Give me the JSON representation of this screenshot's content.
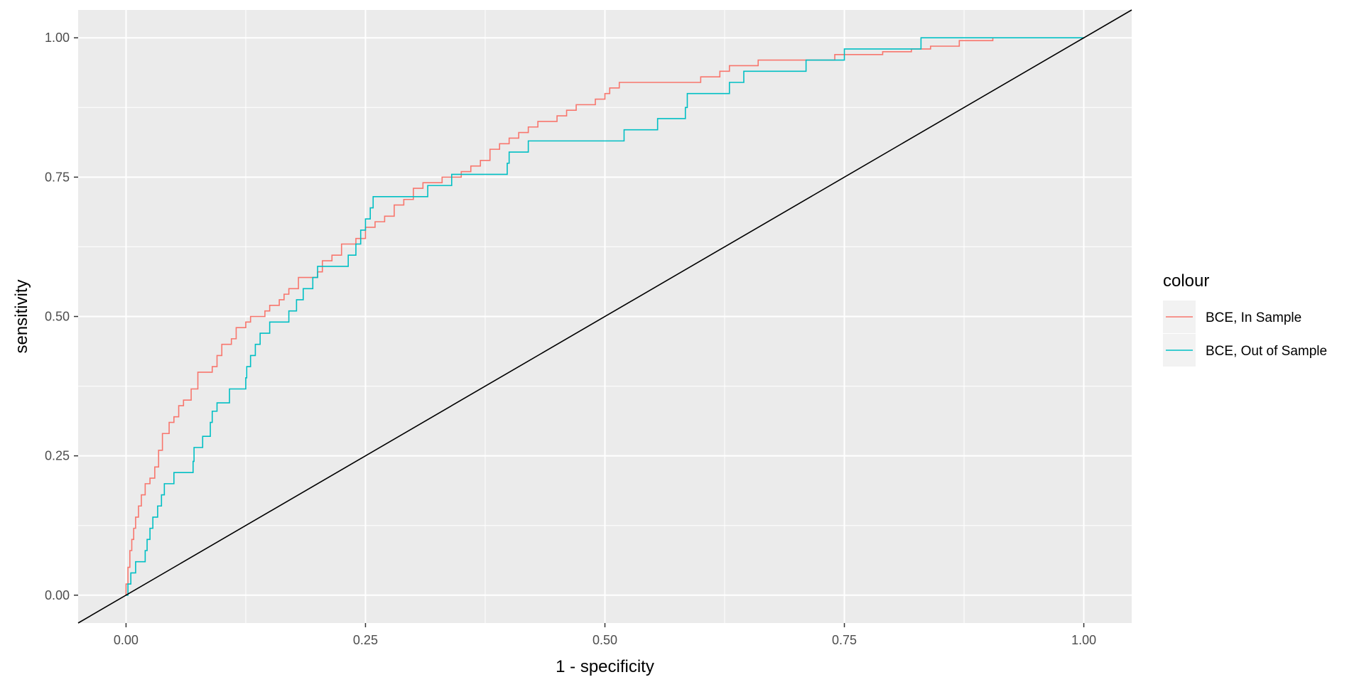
{
  "chart_data": {
    "type": "line",
    "title": "",
    "xlabel": "1 - specificity",
    "ylabel": "sensitivity",
    "xlim": [
      -0.05,
      1.05
    ],
    "ylim": [
      -0.05,
      1.05
    ],
    "x_ticks": [
      0,
      0.25,
      0.5,
      0.75,
      1
    ],
    "x_tick_labels": [
      "0.00",
      "0.25",
      "0.50",
      "0.75",
      "1.00"
    ],
    "y_ticks": [
      0,
      0.25,
      0.5,
      0.75,
      1
    ],
    "y_tick_labels": [
      "0.00",
      "0.25",
      "0.50",
      "0.75",
      "1.00"
    ],
    "grid": true,
    "panel_background": "#ebebeb",
    "legend": {
      "title": "colour",
      "position": "right"
    },
    "reference_line": {
      "slope": 1,
      "intercept": 0,
      "color": "#000000"
    },
    "series": [
      {
        "name": "BCE, In Sample",
        "color": "#f8766d",
        "step": true,
        "points": [
          [
            0,
            0
          ],
          [
            0,
            0.02
          ],
          [
            0.002,
            0.05
          ],
          [
            0.004,
            0.08
          ],
          [
            0.006,
            0.1
          ],
          [
            0.008,
            0.12
          ],
          [
            0.01,
            0.14
          ],
          [
            0.013,
            0.16
          ],
          [
            0.016,
            0.18
          ],
          [
            0.02,
            0.2
          ],
          [
            0.025,
            0.21
          ],
          [
            0.03,
            0.23
          ],
          [
            0.034,
            0.26
          ],
          [
            0.038,
            0.29
          ],
          [
            0.045,
            0.31
          ],
          [
            0.05,
            0.32
          ],
          [
            0.055,
            0.34
          ],
          [
            0.06,
            0.35
          ],
          [
            0.068,
            0.37
          ],
          [
            0.075,
            0.4
          ],
          [
            0.09,
            0.41
          ],
          [
            0.095,
            0.43
          ],
          [
            0.1,
            0.45
          ],
          [
            0.11,
            0.46
          ],
          [
            0.115,
            0.48
          ],
          [
            0.125,
            0.49
          ],
          [
            0.13,
            0.5
          ],
          [
            0.145,
            0.51
          ],
          [
            0.15,
            0.52
          ],
          [
            0.16,
            0.53
          ],
          [
            0.165,
            0.54
          ],
          [
            0.17,
            0.55
          ],
          [
            0.18,
            0.57
          ],
          [
            0.2,
            0.58
          ],
          [
            0.205,
            0.6
          ],
          [
            0.215,
            0.61
          ],
          [
            0.225,
            0.63
          ],
          [
            0.24,
            0.64
          ],
          [
            0.25,
            0.66
          ],
          [
            0.26,
            0.67
          ],
          [
            0.27,
            0.68
          ],
          [
            0.28,
            0.7
          ],
          [
            0.29,
            0.71
          ],
          [
            0.3,
            0.73
          ],
          [
            0.31,
            0.74
          ],
          [
            0.33,
            0.75
          ],
          [
            0.35,
            0.76
          ],
          [
            0.36,
            0.77
          ],
          [
            0.37,
            0.78
          ],
          [
            0.38,
            0.8
          ],
          [
            0.39,
            0.81
          ],
          [
            0.4,
            0.82
          ],
          [
            0.41,
            0.83
          ],
          [
            0.42,
            0.84
          ],
          [
            0.43,
            0.85
          ],
          [
            0.45,
            0.86
          ],
          [
            0.46,
            0.87
          ],
          [
            0.47,
            0.88
          ],
          [
            0.49,
            0.89
          ],
          [
            0.5,
            0.9
          ],
          [
            0.505,
            0.91
          ],
          [
            0.515,
            0.92
          ],
          [
            0.6,
            0.93
          ],
          [
            0.62,
            0.94
          ],
          [
            0.63,
            0.95
          ],
          [
            0.66,
            0.96
          ],
          [
            0.74,
            0.97
          ],
          [
            0.79,
            0.975
          ],
          [
            0.82,
            0.98
          ],
          [
            0.84,
            0.985
          ],
          [
            0.87,
            0.99
          ],
          [
            0.87,
            0.995
          ],
          [
            0.9,
            0.995
          ],
          [
            0.905,
            1.0
          ]
        ]
      },
      {
        "name": "BCE, Out of Sample",
        "color": "#00bfc4",
        "step": true,
        "points": [
          [
            0,
            0
          ],
          [
            0.002,
            0.02
          ],
          [
            0.005,
            0.04
          ],
          [
            0.01,
            0.06
          ],
          [
            0.02,
            0.08
          ],
          [
            0.022,
            0.1
          ],
          [
            0.025,
            0.12
          ],
          [
            0.028,
            0.14
          ],
          [
            0.033,
            0.16
          ],
          [
            0.037,
            0.18
          ],
          [
            0.04,
            0.2
          ],
          [
            0.05,
            0.22
          ],
          [
            0.07,
            0.24
          ],
          [
            0.071,
            0.265
          ],
          [
            0.08,
            0.285
          ],
          [
            0.088,
            0.31
          ],
          [
            0.09,
            0.33
          ],
          [
            0.095,
            0.345
          ],
          [
            0.108,
            0.37
          ],
          [
            0.125,
            0.39
          ],
          [
            0.126,
            0.41
          ],
          [
            0.13,
            0.43
          ],
          [
            0.135,
            0.45
          ],
          [
            0.14,
            0.47
          ],
          [
            0.15,
            0.49
          ],
          [
            0.17,
            0.51
          ],
          [
            0.178,
            0.53
          ],
          [
            0.185,
            0.55
          ],
          [
            0.195,
            0.57
          ],
          [
            0.2,
            0.59
          ],
          [
            0.232,
            0.61
          ],
          [
            0.24,
            0.63
          ],
          [
            0.245,
            0.655
          ],
          [
            0.25,
            0.675
          ],
          [
            0.255,
            0.695
          ],
          [
            0.258,
            0.715
          ],
          [
            0.315,
            0.735
          ],
          [
            0.34,
            0.755
          ],
          [
            0.398,
            0.775
          ],
          [
            0.4,
            0.795
          ],
          [
            0.42,
            0.815
          ],
          [
            0.52,
            0.835
          ],
          [
            0.555,
            0.855
          ],
          [
            0.584,
            0.875
          ],
          [
            0.586,
            0.9
          ],
          [
            0.63,
            0.92
          ],
          [
            0.645,
            0.94
          ],
          [
            0.71,
            0.96
          ],
          [
            0.75,
            0.98
          ],
          [
            0.83,
            1.0
          ],
          [
            1.0,
            1.0
          ]
        ]
      }
    ]
  }
}
